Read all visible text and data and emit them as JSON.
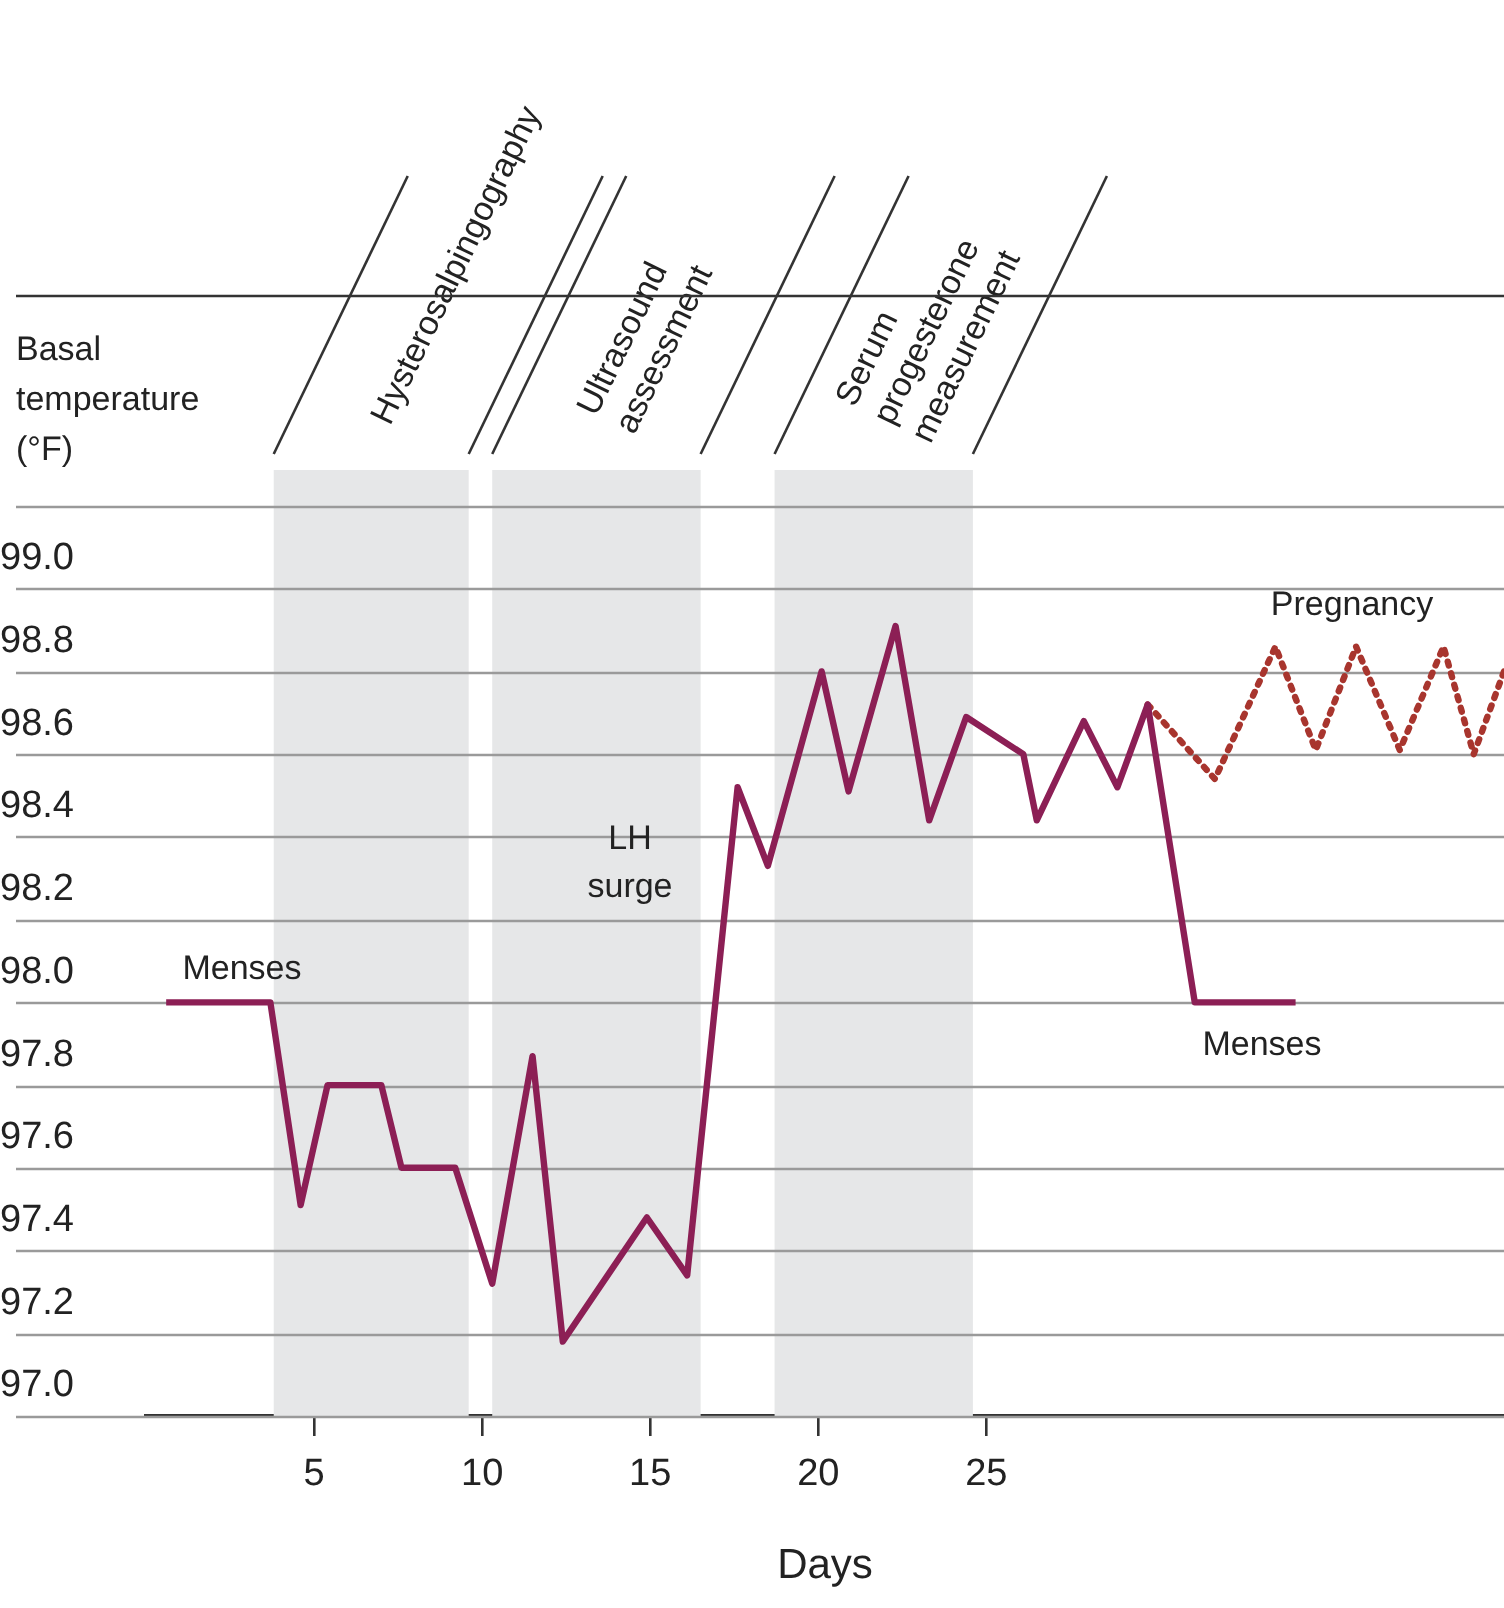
{
  "chart_data": {
    "type": "line",
    "xlabel": "Days",
    "ylabel": "Basal temperature (°F)",
    "xlim": [
      0,
      40.4
    ],
    "xticks": [
      5,
      10,
      15,
      20,
      25
    ],
    "ylim": [
      97.0,
      99.2
    ],
    "yticks": [
      {
        "value": 97.0,
        "label": "97.0"
      },
      {
        "value": 97.2,
        "label": "97.2"
      },
      {
        "value": 97.4,
        "label": "97.4"
      },
      {
        "value": 97.6,
        "label": "97.6"
      },
      {
        "value": 97.8,
        "label": "97.8"
      },
      {
        "value": 98.0,
        "label": "98.0"
      },
      {
        "value": 98.2,
        "label": "98.2"
      },
      {
        "value": 98.4,
        "label": "98.4"
      },
      {
        "value": 98.6,
        "label": "98.6"
      },
      {
        "value": 98.8,
        "label": "98.8"
      },
      {
        "value": 99.0,
        "label": "99.0"
      },
      {
        "value": 99.2,
        "label": null
      }
    ],
    "grid": "y",
    "marker": "none",
    "series": [
      {
        "color": "#8c1f55",
        "line_style": "solid",
        "x": [
          0.6,
          3.7,
          4.6,
          5.4,
          7.0,
          7.6,
          9.2,
          10.3,
          11.5,
          12.4,
          14.9,
          16.1,
          17.6,
          18.5,
          20.1,
          20.9,
          22.3,
          23.3,
          24.4,
          26.1,
          26.5,
          27.9,
          28.9,
          29.8,
          31.2,
          34.2
        ],
        "values": [
          98.0,
          98.0,
          97.51,
          97.8,
          97.8,
          97.6,
          97.6,
          97.32,
          97.87,
          97.18,
          97.48,
          97.34,
          98.52,
          98.33,
          98.8,
          98.51,
          98.91,
          98.44,
          98.69,
          98.6,
          98.44,
          98.68,
          98.52,
          98.72,
          98.0,
          98.0
        ]
      },
      {
        "color": "#a8352e",
        "line_style": "dotted",
        "x": [
          29.8,
          31.8,
          33.6,
          34.8,
          36.0,
          37.3,
          38.6,
          39.5,
          40.4
        ],
        "values": [
          98.72,
          98.54,
          98.86,
          98.61,
          98.86,
          98.61,
          98.86,
          98.6,
          98.8
        ]
      }
    ],
    "bands": [
      {
        "axis": "x",
        "from": 3.8,
        "to": 9.6,
        "label": "Hysterosalpingography",
        "color": "#e6e7e8"
      },
      {
        "axis": "x",
        "from": 10.3,
        "to": 16.5,
        "label": "Ultrasound assessment",
        "color": "#e6e7e8"
      },
      {
        "axis": "x",
        "from": 18.7,
        "to": 24.6,
        "label": "Serum progesterone measurement",
        "color": "#e6e7e8"
      }
    ],
    "annotations": [
      "Menses",
      "LH surge",
      "Pregnancy",
      "Menses"
    ]
  }
}
